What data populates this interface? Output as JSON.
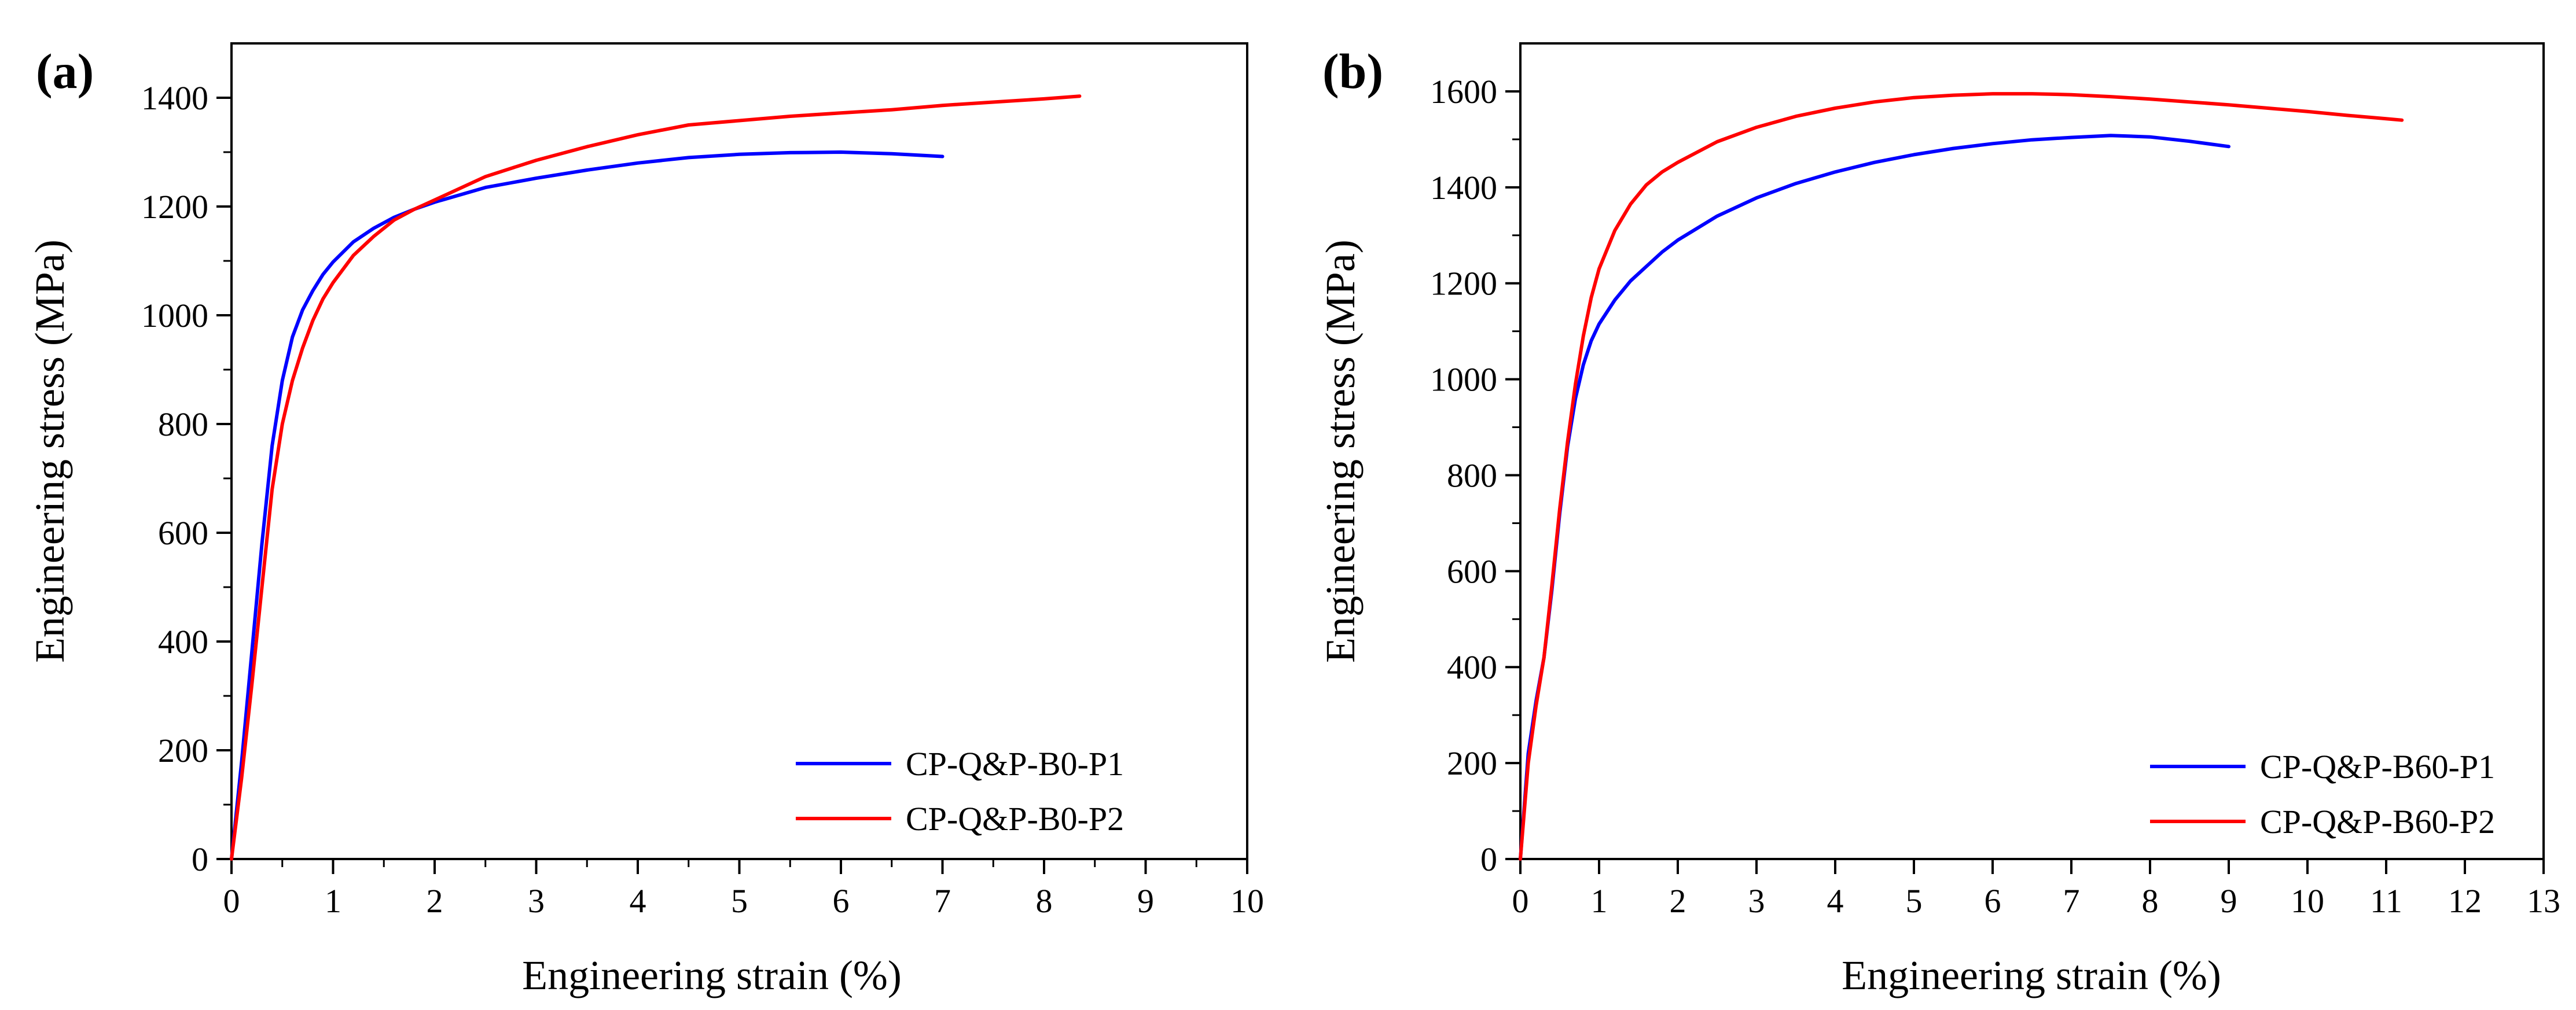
{
  "chart_data": [
    {
      "type": "line",
      "panel_label": "(a)",
      "xlabel": "Engineering strain (%)",
      "ylabel": "Engineering stress (MPa)",
      "xlim": [
        0,
        10
      ],
      "ylim": [
        0,
        1500
      ],
      "xticks": [
        0,
        1,
        2,
        3,
        4,
        5,
        6,
        7,
        8,
        9,
        10
      ],
      "yticks": [
        0,
        200,
        400,
        600,
        800,
        1000,
        1200,
        1400
      ],
      "grid": false,
      "legend_position": "bottom-right",
      "series": [
        {
          "name": "CP-Q&P-B0-P1",
          "color": "#0000ff",
          "points": [
            [
              0,
              0
            ],
            [
              0.1,
              180
            ],
            [
              0.2,
              380
            ],
            [
              0.3,
              580
            ],
            [
              0.4,
              760
            ],
            [
              0.5,
              880
            ],
            [
              0.6,
              960
            ],
            [
              0.7,
              1010
            ],
            [
              0.8,
              1045
            ],
            [
              0.9,
              1075
            ],
            [
              1.0,
              1098
            ],
            [
              1.2,
              1135
            ],
            [
              1.4,
              1160
            ],
            [
              1.6,
              1180
            ],
            [
              1.8,
              1195
            ],
            [
              2.0,
              1208
            ],
            [
              2.5,
              1235
            ],
            [
              3.0,
              1252
            ],
            [
              3.5,
              1267
            ],
            [
              4.0,
              1280
            ],
            [
              4.5,
              1290
            ],
            [
              5.0,
              1296
            ],
            [
              5.5,
              1299
            ],
            [
              6.0,
              1300
            ],
            [
              6.5,
              1297
            ],
            [
              7.0,
              1292
            ]
          ]
        },
        {
          "name": "CP-Q&P-B0-P2",
          "color": "#ff0000",
          "points": [
            [
              0,
              0
            ],
            [
              0.1,
              150
            ],
            [
              0.2,
              320
            ],
            [
              0.3,
              500
            ],
            [
              0.4,
              680
            ],
            [
              0.5,
              800
            ],
            [
              0.6,
              880
            ],
            [
              0.7,
              940
            ],
            [
              0.8,
              990
            ],
            [
              0.9,
              1030
            ],
            [
              1.0,
              1060
            ],
            [
              1.2,
              1110
            ],
            [
              1.4,
              1145
            ],
            [
              1.6,
              1175
            ],
            [
              1.8,
              1195
            ],
            [
              2.0,
              1212
            ],
            [
              2.5,
              1255
            ],
            [
              3.0,
              1285
            ],
            [
              3.5,
              1310
            ],
            [
              4.0,
              1332
            ],
            [
              4.5,
              1350
            ],
            [
              5.0,
              1358
            ],
            [
              5.5,
              1366
            ],
            [
              6.0,
              1372
            ],
            [
              6.5,
              1378
            ],
            [
              7.0,
              1386
            ],
            [
              7.5,
              1392
            ],
            [
              8.0,
              1398
            ],
            [
              8.35,
              1403
            ]
          ]
        }
      ]
    },
    {
      "type": "line",
      "panel_label": "(b)",
      "xlabel": "Engineering strain (%)",
      "ylabel": "Engineering stress (MPa)",
      "xlim": [
        0,
        13
      ],
      "ylim": [
        0,
        1700
      ],
      "xticks": [
        0,
        1,
        2,
        3,
        4,
        5,
        6,
        7,
        8,
        9,
        10,
        11,
        12,
        13
      ],
      "yticks": [
        0,
        200,
        400,
        600,
        800,
        1000,
        1200,
        1400,
        1600
      ],
      "grid": false,
      "legend_position": "bottom-right",
      "series": [
        {
          "name": "CP-Q&P-B60-P1",
          "color": "#0000ff",
          "points": [
            [
              0,
              0
            ],
            [
              0.1,
              220
            ],
            [
              0.2,
              330
            ],
            [
              0.3,
              420
            ],
            [
              0.4,
              560
            ],
            [
              0.5,
              720
            ],
            [
              0.6,
              860
            ],
            [
              0.7,
              960
            ],
            [
              0.8,
              1030
            ],
            [
              0.9,
              1080
            ],
            [
              1.0,
              1115
            ],
            [
              1.2,
              1165
            ],
            [
              1.4,
              1205
            ],
            [
              1.6,
              1235
            ],
            [
              1.8,
              1265
            ],
            [
              2.0,
              1290
            ],
            [
              2.5,
              1340
            ],
            [
              3.0,
              1378
            ],
            [
              3.5,
              1408
            ],
            [
              4.0,
              1432
            ],
            [
              4.5,
              1452
            ],
            [
              5.0,
              1468
            ],
            [
              5.5,
              1481
            ],
            [
              6.0,
              1491
            ],
            [
              6.5,
              1499
            ],
            [
              7.0,
              1504
            ],
            [
              7.5,
              1508
            ],
            [
              8.0,
              1505
            ],
            [
              8.5,
              1496
            ],
            [
              9.0,
              1485
            ]
          ]
        },
        {
          "name": "CP-Q&P-B60-P2",
          "color": "#ff0000",
          "points": [
            [
              0,
              0
            ],
            [
              0.1,
              200
            ],
            [
              0.2,
              320
            ],
            [
              0.3,
              420
            ],
            [
              0.4,
              570
            ],
            [
              0.5,
              730
            ],
            [
              0.6,
              870
            ],
            [
              0.7,
              990
            ],
            [
              0.8,
              1090
            ],
            [
              0.9,
              1170
            ],
            [
              1.0,
              1230
            ],
            [
              1.2,
              1310
            ],
            [
              1.4,
              1365
            ],
            [
              1.6,
              1405
            ],
            [
              1.8,
              1432
            ],
            [
              2.0,
              1452
            ],
            [
              2.5,
              1495
            ],
            [
              3.0,
              1525
            ],
            [
              3.5,
              1548
            ],
            [
              4.0,
              1565
            ],
            [
              4.5,
              1578
            ],
            [
              5.0,
              1587
            ],
            [
              5.5,
              1592
            ],
            [
              6.0,
              1595
            ],
            [
              6.5,
              1595
            ],
            [
              7.0,
              1593
            ],
            [
              7.5,
              1589
            ],
            [
              8.0,
              1584
            ],
            [
              8.5,
              1578
            ],
            [
              9.0,
              1572
            ],
            [
              9.5,
              1565
            ],
            [
              10.0,
              1558
            ],
            [
              10.5,
              1550
            ],
            [
              11.0,
              1543
            ],
            [
              11.2,
              1540
            ]
          ]
        }
      ]
    }
  ]
}
